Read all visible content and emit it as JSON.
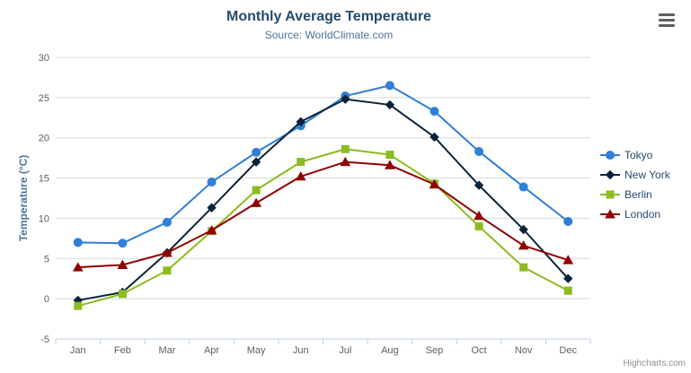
{
  "chart": {
    "credits_label": "Highcharts.com",
    "context_menu_icon": "hamburger-icon"
  },
  "chart_data": {
    "type": "line",
    "title": "Monthly Average Temperature",
    "subtitle": "Source: WorldClimate.com",
    "xlabel": "",
    "ylabel": "Temperature (°C)",
    "ylim": [
      -5,
      30
    ],
    "ytick_interval": 5,
    "grid": true,
    "legend_position": "right",
    "categories": [
      "Jan",
      "Feb",
      "Mar",
      "Apr",
      "May",
      "Jun",
      "Jul",
      "Aug",
      "Sep",
      "Oct",
      "Nov",
      "Dec"
    ],
    "series": [
      {
        "name": "Tokyo",
        "color": "#2f7ed8",
        "marker": "circle",
        "values": [
          7.0,
          6.9,
          9.5,
          14.5,
          18.2,
          21.5,
          25.2,
          26.5,
          23.3,
          18.3,
          13.9,
          9.6
        ]
      },
      {
        "name": "New York",
        "color": "#0d233a",
        "marker": "diamond",
        "values": [
          -0.2,
          0.8,
          5.7,
          11.3,
          17.0,
          22.0,
          24.8,
          24.1,
          20.1,
          14.1,
          8.6,
          2.5
        ]
      },
      {
        "name": "Berlin",
        "color": "#8bbc21",
        "marker": "square",
        "values": [
          -0.9,
          0.6,
          3.5,
          8.4,
          13.5,
          17.0,
          18.6,
          17.9,
          14.3,
          9.0,
          3.9,
          1.0
        ]
      },
      {
        "name": "London",
        "color": "#910000",
        "marker": "triangle",
        "values": [
          3.9,
          4.2,
          5.7,
          8.5,
          11.9,
          15.2,
          17.0,
          16.6,
          14.2,
          10.3,
          6.6,
          4.8
        ]
      }
    ]
  },
  "style_colors": {
    "grid_line": "#d8d8d8",
    "axis_line": "#c0d0e0",
    "tick_label": "#606060",
    "title": "#274b6d",
    "subtitle": "#4d759e",
    "legend_text": "#274b6d",
    "credits_text": "#909090"
  }
}
